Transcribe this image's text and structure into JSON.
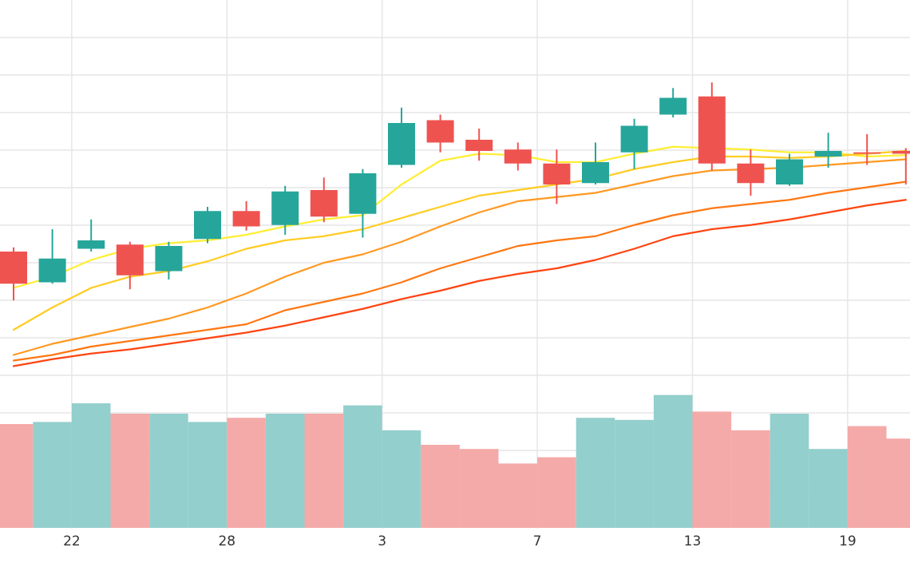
{
  "colors": {
    "up": "#26a69a",
    "down": "#ef5350",
    "volume_up": "#93cfcc",
    "volume_down": "#f4aaa8",
    "grid": "#e6e6e6",
    "ma_colors": [
      "#ffee33",
      "#ffcc22",
      "#ff9922",
      "#ff7711",
      "#ff4411"
    ]
  },
  "chart_data": {
    "type": "candlestick",
    "grid": true,
    "legend": "none",
    "title": "",
    "xlabel": "",
    "ylabel": "",
    "price_range": [
      0,
      100
    ],
    "volume_range": [
      0,
      100
    ],
    "x_ticks": [
      {
        "label": "22",
        "index": 1
      },
      {
        "label": "28",
        "index": 5
      },
      {
        "label": "3",
        "index": 9
      },
      {
        "label": "7",
        "index": 13
      },
      {
        "label": "13",
        "index": 17
      },
      {
        "label": "19",
        "index": 21
      }
    ],
    "candles": [
      {
        "open": 62.0,
        "close": 50.5,
        "high": 63.5,
        "low": 44.5
      },
      {
        "open": 51.0,
        "close": 59.5,
        "high": 70.0,
        "low": 50.5
      },
      {
        "open": 63.0,
        "close": 66.0,
        "high": 73.5,
        "low": 62.0
      },
      {
        "open": 64.5,
        "close": 53.5,
        "high": 65.5,
        "low": 48.5
      },
      {
        "open": 55.0,
        "close": 64.0,
        "high": 65.5,
        "low": 52.0
      },
      {
        "open": 66.5,
        "close": 76.5,
        "high": 78.0,
        "low": 65.0
      },
      {
        "open": 76.5,
        "close": 71.0,
        "high": 80.0,
        "low": 69.5
      },
      {
        "open": 71.5,
        "close": 83.5,
        "high": 85.5,
        "low": 68.0
      },
      {
        "open": 84.0,
        "close": 74.5,
        "high": 88.5,
        "low": 72.5
      },
      {
        "open": 75.5,
        "close": 90.0,
        "high": 91.5,
        "low": 67.0
      },
      {
        "open": 93.0,
        "close": 108.0,
        "high": 113.5,
        "low": 92.0
      },
      {
        "open": 109.0,
        "close": 101.0,
        "high": 111.0,
        "low": 97.5
      },
      {
        "open": 102.0,
        "close": 98.0,
        "high": 106.0,
        "low": 94.5
      },
      {
        "open": 98.5,
        "close": 93.5,
        "high": 101.0,
        "low": 91.0
      },
      {
        "open": 93.5,
        "close": 86.0,
        "high": 98.5,
        "low": 79.0
      },
      {
        "open": 86.5,
        "close": 94.0,
        "high": 101.0,
        "low": 86.0
      },
      {
        "open": 97.5,
        "close": 107.0,
        "high": 109.5,
        "low": 91.5
      },
      {
        "open": 111.0,
        "close": 117.0,
        "high": 120.5,
        "low": 110.0
      },
      {
        "open": 117.5,
        "close": 93.5,
        "high": 122.5,
        "low": 91.0
      },
      {
        "open": 93.5,
        "close": 86.5,
        "high": 98.5,
        "low": 82.0
      },
      {
        "open": 86.0,
        "close": 95.0,
        "high": 97.0,
        "low": 85.5
      },
      {
        "open": 96.0,
        "close": 98.0,
        "high": 104.5,
        "low": 92.0
      },
      {
        "open": 97.5,
        "close": 97.0,
        "high": 104.0,
        "low": 93.0
      },
      {
        "open": 98.0,
        "close": 97.0,
        "high": 99.0,
        "low": 86.0
      }
    ],
    "volumes": [
      50,
      51,
      60,
      55,
      55,
      51,
      53,
      55,
      55,
      59,
      47,
      40,
      38,
      31,
      34,
      53,
      52,
      64,
      56,
      47,
      55,
      38,
      49,
      43
    ],
    "moving_averages": [
      {
        "values": [
          49,
          53,
          59,
          63,
          65,
          66,
          68,
          71,
          73.5,
          75,
          86,
          94.5,
          97,
          96.5,
          94,
          94,
          97,
          99.5,
          99,
          98.5,
          97.5,
          97.5,
          96,
          96.5
        ]
      },
      {
        "values": [
          34,
          42,
          49,
          53,
          55,
          58.5,
          63,
          66,
          67.5,
          70,
          74,
          78,
          82,
          84,
          86,
          88,
          91.5,
          94,
          96,
          96,
          95.5,
          96,
          97,
          98
        ]
      },
      {
        "values": [
          25,
          29,
          32,
          35,
          38,
          42,
          47,
          53,
          58,
          61,
          65.5,
          71,
          76,
          80,
          81.5,
          83,
          86,
          89,
          91,
          91.5,
          92,
          93,
          94,
          95
        ]
      },
      {
        "values": [
          23,
          25,
          28,
          30,
          32,
          34,
          36,
          41,
          44,
          47,
          51,
          56,
          60,
          64,
          66,
          67.5,
          71.5,
          75,
          77.5,
          79,
          80.5,
          83,
          85,
          87
        ]
      },
      {
        "values": [
          21,
          23.5,
          25.5,
          27,
          29,
          31,
          33,
          35.5,
          38.5,
          41.5,
          45,
          48,
          51.5,
          54,
          56,
          59,
          63,
          67.5,
          70,
          71.5,
          73.5,
          76,
          78.5,
          80.5
        ]
      }
    ]
  }
}
